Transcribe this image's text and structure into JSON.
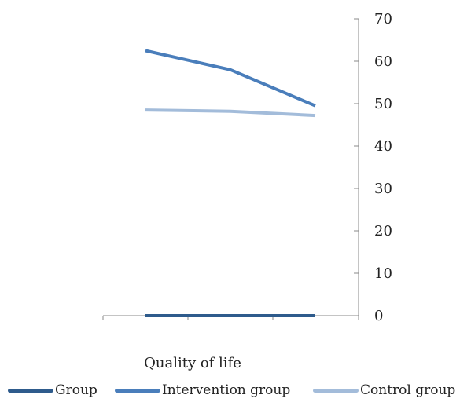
{
  "chart_data": {
    "type": "line",
    "title": "",
    "xlabel": "Quality of life",
    "ylabel": "",
    "ylim": [
      0,
      70
    ],
    "yticks": [
      0,
      10,
      20,
      30,
      40,
      50,
      60,
      70
    ],
    "y_axis_position": "right",
    "legend_position": "bottom",
    "categories": [
      "",
      "",
      ""
    ],
    "series": [
      {
        "name": "Group",
        "color": "#2E5B8C",
        "values": [
          0,
          0,
          0
        ]
      },
      {
        "name": "Intervention group",
        "color": "#4A7EBB",
        "values": [
          62.5,
          58,
          49.5
        ]
      },
      {
        "name": "Control group",
        "color": "#A3BCDA",
        "values": [
          48.5,
          48.2,
          47.2
        ]
      }
    ]
  }
}
